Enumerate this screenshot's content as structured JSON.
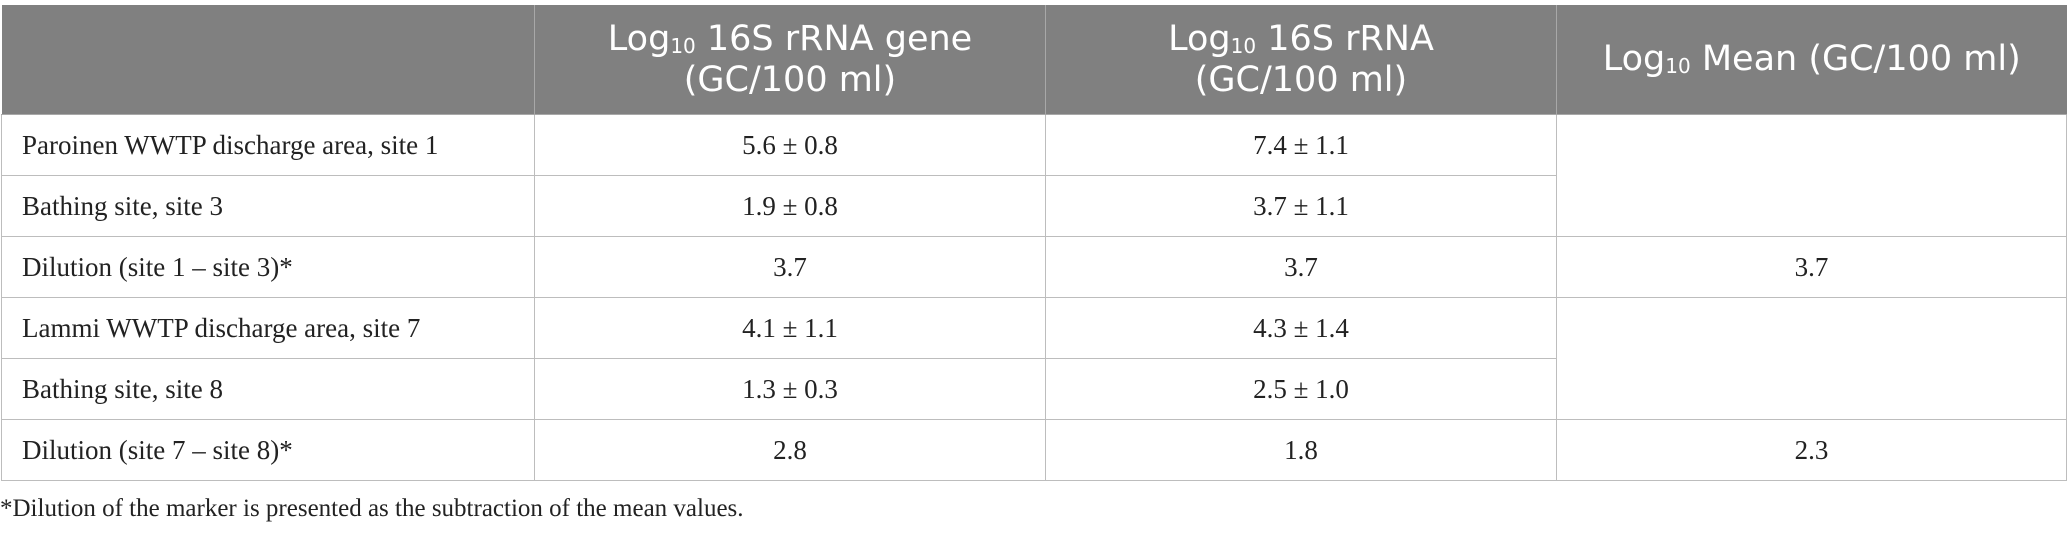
{
  "table": {
    "headers": [
      {
        "pre": "",
        "sub": "",
        "post": ""
      },
      {
        "pre": "Log",
        "sub": "10",
        "post": " 16S rRNA gene",
        "line2": "(GC/100 ml)"
      },
      {
        "pre": "Log",
        "sub": "10",
        "post": " 16S rRNA",
        "line2": "(GC/100 ml)"
      },
      {
        "pre": "Log",
        "sub": "10",
        "post": " Mean (GC/100 ml)",
        "line2": ""
      }
    ],
    "rows": [
      {
        "label": "Paroinen WWTP discharge area, site 1",
        "gene": "5.6 ± 0.8",
        "rrna": "7.4 ± 1.1",
        "mean": ""
      },
      {
        "label": "Bathing site, site 3",
        "gene": "1.9 ± 0.8",
        "rrna": "3.7 ± 1.1",
        "mean": ""
      },
      {
        "label": "Dilution (site 1 – site 3)*",
        "gene": "3.7",
        "rrna": "3.7",
        "mean": "3.7"
      },
      {
        "label": "Lammi WWTP discharge area, site 7",
        "gene": "4.1 ± 1.1",
        "rrna": "4.3 ± 1.4",
        "mean": ""
      },
      {
        "label": "Bathing site, site 8",
        "gene": "1.3 ± 0.3",
        "rrna": "2.5 ± 1.0",
        "mean": ""
      },
      {
        "label": "Dilution (site 7 – site 8)*",
        "gene": "2.8",
        "rrna": "1.8",
        "mean": "2.3"
      }
    ]
  },
  "footnote": "*Dilution of the marker is presented as the subtraction of the mean values.",
  "colors": {
    "header_bg": "#808080",
    "header_text": "#ffffff",
    "body_text": "#222222",
    "grid": "#bdbdbd"
  }
}
